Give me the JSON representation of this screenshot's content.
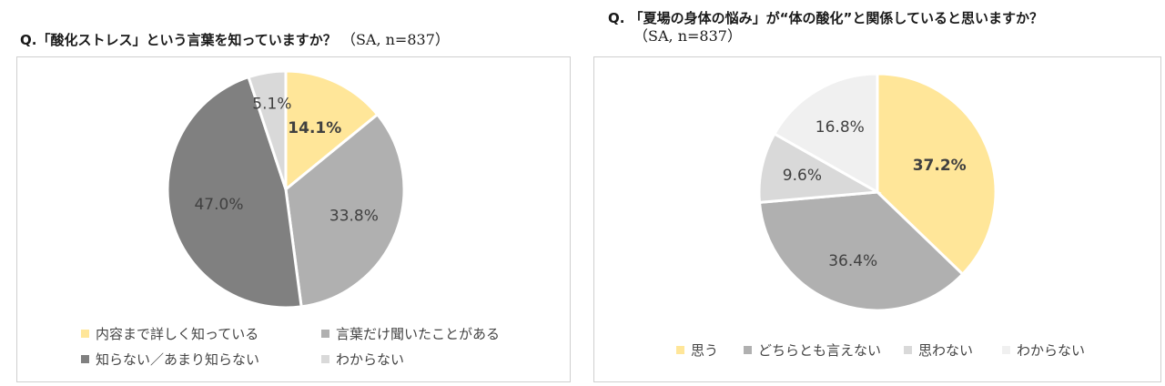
{
  "chart_data": [
    {
      "type": "pie",
      "title": "Q.「酸化ストレス」という言葉を知っていますか？",
      "meta": "（SA, n=837）",
      "categories": [
        "内容まで詳しく知っている",
        "言葉だけ聞いたことがある",
        "知らない／あまり知らない",
        "わからない"
      ],
      "values": [
        14.1,
        33.8,
        47.0,
        5.1
      ],
      "labels": [
        "14.1%",
        "33.8%",
        "47.0%",
        "5.1%"
      ],
      "colors": [
        "#ffe699",
        "#b0b0b0",
        "#808080",
        "#d9d9d9"
      ],
      "bold": [
        true,
        false,
        false,
        false
      ],
      "legend_position": "bottom"
    },
    {
      "type": "pie",
      "title": "Q. 「夏場の身体の悩み」が“体の酸化”と関係していると思いますか？",
      "meta": "（SA, n=837）",
      "categories": [
        "思う",
        "どちらとも言えない",
        "思わない",
        "わからない"
      ],
      "values": [
        37.2,
        36.4,
        9.6,
        16.8
      ],
      "labels": [
        "37.2%",
        "36.4%",
        "9.6%",
        "16.8%"
      ],
      "colors": [
        "#ffe699",
        "#b0b0b0",
        "#d9d9d9",
        "#f0f0f0"
      ],
      "bold": [
        true,
        false,
        false,
        false
      ],
      "legend_position": "bottom"
    }
  ]
}
